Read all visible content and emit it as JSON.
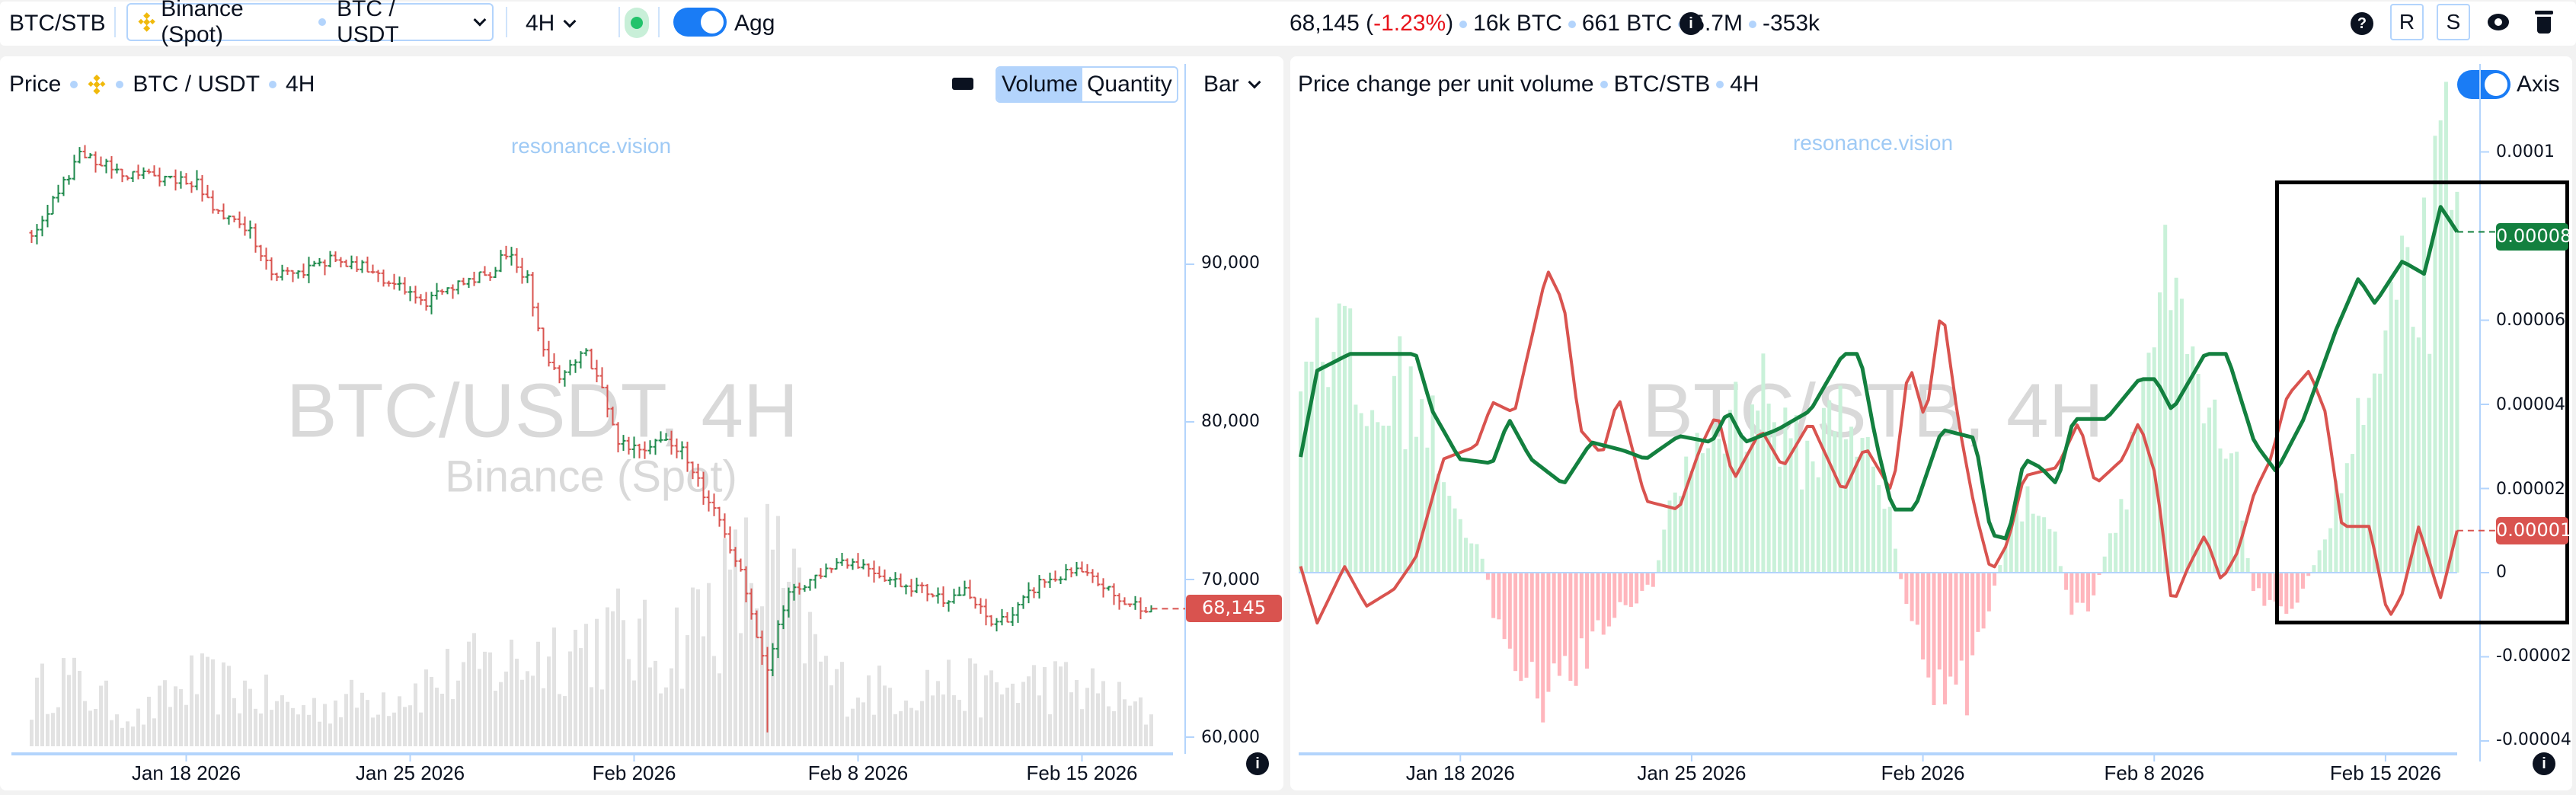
{
  "topbar": {
    "symbol": "BTC/STB",
    "exchange": "Binance (Spot)",
    "pair": "BTC / USDT",
    "timeframe": "4H",
    "agg_label": "Agg",
    "stats": {
      "price": "68,145",
      "change": "-1.23%",
      "vol1": "16k BTC",
      "vol2": "661 BTC",
      "vol3": "5.7M",
      "delta": "-353k"
    },
    "help": "?",
    "r": "R",
    "s": "S"
  },
  "colors": {
    "up": "#1f8a4c",
    "down": "#d9534f",
    "hist_up": "#c9f1d9",
    "hist_down": "#ffb6bd",
    "axis": "#b3d4fc",
    "accent": "#1a7cf5"
  },
  "left": {
    "title": "Price",
    "pair": "BTC / USDT",
    "timeframe": "4H",
    "seg": [
      "Volume",
      "Quantity"
    ],
    "seg_active": 0,
    "chart_type": "Bar",
    "watermark": "BTC/USDT, 4H",
    "watermark_sub": "Binance (Spot)",
    "brand": "resonance.vision",
    "y_ticks": [
      "90,000",
      "80,000",
      "70,000",
      "60,000"
    ],
    "last_price": "68,145"
  },
  "right": {
    "title": "Price change per unit volume",
    "pair": "BTC/STB",
    "timeframe": "4H",
    "axis_label": "Axis",
    "watermark": "BTC/STB, 4H",
    "brand": "resonance.vision",
    "y_ticks": [
      "0.0001",
      "0.00006",
      "0.00004",
      "0.00002",
      "0",
      "-0.00002",
      "-0.00004"
    ],
    "last_green": "0.00008",
    "last_red": "0.00001"
  },
  "x_ticks": [
    {
      "label": "Jan 18 2026",
      "bar": 29
    },
    {
      "label": "Jan 25 2026",
      "bar": 71
    },
    {
      "label": "Feb 2026",
      "bar": 113
    },
    {
      "label": "Feb 8 2026",
      "bar": 155
    },
    {
      "label": "Feb 15 2026",
      "bar": 197
    }
  ],
  "chart_data": [
    {
      "type": "ohlc",
      "title": "Price BTC / USDT 4H",
      "bars": 211,
      "ylim": [
        60000,
        100000
      ],
      "close_keypoints": [
        [
          0,
          92000
        ],
        [
          5,
          94500
        ],
        [
          9,
          97000
        ],
        [
          12,
          96500
        ],
        [
          17,
          95800
        ],
        [
          26,
          95500
        ],
        [
          31,
          95200
        ],
        [
          34,
          93300
        ],
        [
          41,
          92000
        ],
        [
          45,
          89500
        ],
        [
          50,
          89500
        ],
        [
          56,
          90300
        ],
        [
          62,
          89800
        ],
        [
          68,
          88800
        ],
        [
          73,
          87400
        ],
        [
          78,
          88600
        ],
        [
          86,
          89500
        ],
        [
          89,
          90700
        ],
        [
          93,
          89000
        ],
        [
          96,
          84500
        ],
        [
          99,
          83000
        ],
        [
          104,
          84300
        ],
        [
          107,
          82000
        ],
        [
          110,
          78600
        ],
        [
          114,
          78200
        ],
        [
          118,
          79000
        ],
        [
          122,
          78300
        ],
        [
          126,
          75500
        ],
        [
          130,
          73000
        ],
        [
          133,
          70500
        ],
        [
          136,
          66000
        ],
        [
          138,
          64200
        ],
        [
          140,
          67500
        ],
        [
          142,
          69000
        ],
        [
          147,
          70200
        ],
        [
          152,
          71300
        ],
        [
          157,
          70800
        ],
        [
          161,
          70000
        ],
        [
          166,
          69500
        ],
        [
          171,
          68800
        ],
        [
          175,
          69200
        ],
        [
          180,
          67200
        ],
        [
          184,
          67800
        ],
        [
          189,
          69800
        ],
        [
          196,
          70500
        ],
        [
          201,
          69600
        ],
        [
          204,
          68600
        ],
        [
          211,
          68145
        ]
      ],
      "volume_rel_keypoints": [
        [
          0,
          0.25
        ],
        [
          5,
          0.4
        ],
        [
          10,
          0.3
        ],
        [
          20,
          0.15
        ],
        [
          30,
          0.35
        ],
        [
          40,
          0.3
        ],
        [
          50,
          0.2
        ],
        [
          60,
          0.25
        ],
        [
          70,
          0.3
        ],
        [
          80,
          0.4
        ],
        [
          90,
          0.45
        ],
        [
          100,
          0.55
        ],
        [
          110,
          0.6
        ],
        [
          118,
          0.5
        ],
        [
          125,
          0.7
        ],
        [
          132,
          0.85
        ],
        [
          138,
          1.0
        ],
        [
          143,
          0.75
        ],
        [
          150,
          0.35
        ],
        [
          160,
          0.3
        ],
        [
          170,
          0.35
        ],
        [
          180,
          0.3
        ],
        [
          190,
          0.35
        ],
        [
          200,
          0.3
        ],
        [
          211,
          0.15
        ]
      ]
    },
    {
      "type": "line+histogram",
      "title": "Price change per unit volume BTC/STB 4H",
      "unit": 1e-05,
      "ylim": [
        -4e-05,
        0.0001
      ],
      "green_keypoints": [
        [
          0,
          2.75
        ],
        [
          3,
          4.8
        ],
        [
          9,
          5.2
        ],
        [
          21,
          5.2
        ],
        [
          24,
          3.85
        ],
        [
          29,
          2.7
        ],
        [
          35,
          2.6
        ],
        [
          38,
          3.65
        ],
        [
          42,
          2.7
        ],
        [
          48,
          2.1
        ],
        [
          53,
          3.1
        ],
        [
          59,
          2.9
        ],
        [
          63,
          2.7
        ],
        [
          69,
          3.25
        ],
        [
          75,
          3.1
        ],
        [
          78,
          3.85
        ],
        [
          81,
          3.1
        ],
        [
          87,
          3.4
        ],
        [
          93,
          3.85
        ],
        [
          99,
          5.2
        ],
        [
          102,
          5.2
        ],
        [
          105,
          3.1
        ],
        [
          108,
          1.5
        ],
        [
          112,
          1.5
        ],
        [
          117,
          3.4
        ],
        [
          123,
          3.2
        ],
        [
          126,
          0.9
        ],
        [
          129,
          0.8
        ],
        [
          132,
          2.7
        ],
        [
          135,
          2.5
        ],
        [
          138,
          2.1
        ],
        [
          141,
          3.65
        ],
        [
          147,
          3.65
        ],
        [
          153,
          4.6
        ],
        [
          156,
          4.6
        ],
        [
          159,
          3.85
        ],
        [
          165,
          5.2
        ],
        [
          169,
          5.2
        ],
        [
          174,
          3.1
        ],
        [
          178,
          2.4
        ],
        [
          183,
          3.65
        ],
        [
          189,
          5.8
        ],
        [
          193,
          7.0
        ],
        [
          196,
          6.4
        ],
        [
          201,
          7.4
        ],
        [
          205,
          7.1
        ],
        [
          208,
          8.7
        ],
        [
          211,
          8.1
        ]
      ],
      "red_keypoints": [
        [
          0,
          0.15
        ],
        [
          3,
          -1.2
        ],
        [
          8,
          0.15
        ],
        [
          12,
          -0.8
        ],
        [
          17,
          -0.4
        ],
        [
          21,
          0.35
        ],
        [
          26,
          2.7
        ],
        [
          32,
          3.0
        ],
        [
          35,
          4.05
        ],
        [
          39,
          3.8
        ],
        [
          45,
          7.2
        ],
        [
          48,
          6.4
        ],
        [
          51,
          3.4
        ],
        [
          55,
          2.8
        ],
        [
          58,
          4.2
        ],
        [
          63,
          1.7
        ],
        [
          69,
          1.5
        ],
        [
          73,
          3.0
        ],
        [
          76,
          3.8
        ],
        [
          79,
          2.2
        ],
        [
          84,
          3.4
        ],
        [
          88,
          2.5
        ],
        [
          93,
          3.6
        ],
        [
          99,
          1.9
        ],
        [
          103,
          3.0
        ],
        [
          108,
          1.9
        ],
        [
          111,
          5.0
        ],
        [
          114,
          3.6
        ],
        [
          117,
          6.4
        ],
        [
          120,
          3.6
        ],
        [
          123,
          1.5
        ],
        [
          126,
          0
        ],
        [
          129,
          0.7
        ],
        [
          132,
          2.3
        ],
        [
          138,
          2.5
        ],
        [
          142,
          3.6
        ],
        [
          145,
          2.1
        ],
        [
          150,
          2.7
        ],
        [
          153,
          3.6
        ],
        [
          156,
          2.3
        ],
        [
          159,
          -0.8
        ],
        [
          162,
          0.15
        ],
        [
          165,
          0.9
        ],
        [
          168,
          -0.2
        ],
        [
          171,
          0.5
        ],
        [
          174,
          1.9
        ],
        [
          177,
          2.7
        ],
        [
          180,
          4.2
        ],
        [
          184,
          4.8
        ],
        [
          187,
          3.8
        ],
        [
          190,
          1.1
        ],
        [
          195,
          1.1
        ],
        [
          198,
          -0.8
        ],
        [
          199,
          -1.0
        ],
        [
          201,
          -0.5
        ],
        [
          204,
          1.1
        ],
        [
          207,
          -0.2
        ],
        [
          208,
          -0.6
        ],
        [
          211,
          1.0
        ]
      ],
      "histogram_keypoints": [
        [
          0,
          5
        ],
        [
          3,
          7
        ],
        [
          8,
          6
        ],
        [
          12,
          4
        ],
        [
          18,
          5
        ],
        [
          22,
          4.5
        ],
        [
          26,
          3
        ],
        [
          30,
          1
        ],
        [
          33,
          0.5
        ],
        [
          35,
          -1
        ],
        [
          40,
          -2.5
        ],
        [
          45,
          -3.6
        ],
        [
          48,
          -3
        ],
        [
          52,
          -2
        ],
        [
          56,
          -1.5
        ],
        [
          60,
          -0.8
        ],
        [
          64,
          -0.3
        ],
        [
          66,
          1
        ],
        [
          70,
          3
        ],
        [
          75,
          3.8
        ],
        [
          80,
          4.5
        ],
        [
          84,
          5
        ],
        [
          88,
          3.5
        ],
        [
          93,
          3
        ],
        [
          98,
          5
        ],
        [
          103,
          3
        ],
        [
          107,
          1.5
        ],
        [
          110,
          -1
        ],
        [
          114,
          -2.5
        ],
        [
          118,
          -4
        ],
        [
          121,
          -3
        ],
        [
          125,
          -1
        ],
        [
          128,
          0.8
        ],
        [
          132,
          2
        ],
        [
          136,
          1.5
        ],
        [
          140,
          -1
        ],
        [
          143,
          -1.2
        ],
        [
          146,
          0.5
        ],
        [
          150,
          2.5
        ],
        [
          154,
          6
        ],
        [
          157,
          7.4
        ],
        [
          161,
          5.5
        ],
        [
          165,
          4
        ],
        [
          170,
          2.5
        ],
        [
          173,
          -0.5
        ],
        [
          178,
          -1
        ],
        [
          182,
          -0.5
        ],
        [
          186,
          1
        ],
        [
          190,
          3
        ],
        [
          195,
          5
        ],
        [
          200,
          7
        ],
        [
          205,
          8.5
        ],
        [
          208,
          10.5
        ],
        [
          211,
          7
        ]
      ]
    }
  ]
}
